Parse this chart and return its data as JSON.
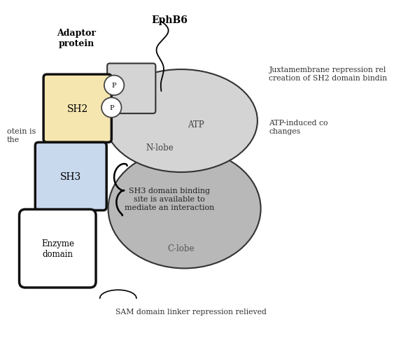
{
  "title": "EphB6",
  "bg_color": "#ffffff",
  "adaptor_label": "Adaptor\nprotein",
  "sh2_label": "SH2",
  "sh2_color": "#f5e6b0",
  "sh3_label": "SH3",
  "sh3_color": "#c8d8ed",
  "enzyme_label": "Enzyme\ndomain",
  "enzyme_color": "#ffffff",
  "nlobe_label": "N-lobe",
  "atp_label": "ATP",
  "nlobe_color": "#d4d4d4",
  "clobe_label": "C-lobe",
  "clobe_color": "#b8b8b8",
  "p_label": "P",
  "annotation1": "Juxtamembrane repression rel\ncreation of SH2 domain bindin",
  "annotation2": "ATP-induced co\nchanges",
  "annotation3": "SH3 domain binding\nsite is available to\nmediate an interaction",
  "annotation4": "SAM domain linker repression relieved",
  "annotation5": "otein is\nthe"
}
